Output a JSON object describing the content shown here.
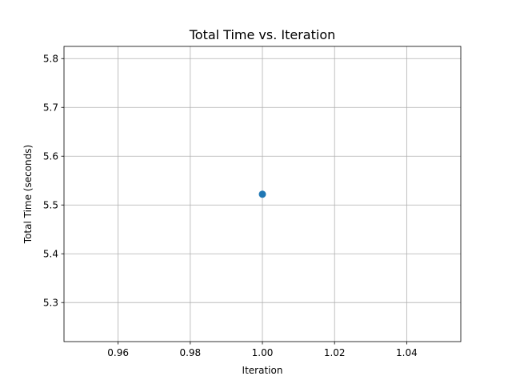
{
  "chart_data": {
    "type": "scatter",
    "title": "Total Time vs. Iteration",
    "xlabel": "Iteration",
    "ylabel": "Total Time (seconds)",
    "xlim": [
      0.945,
      1.055
    ],
    "ylim": [
      5.22,
      5.825
    ],
    "x_ticks": [
      0.96,
      0.98,
      1.0,
      1.02,
      1.04
    ],
    "x_tick_labels": [
      "0.96",
      "0.98",
      "1.00",
      "1.02",
      "1.04"
    ],
    "y_ticks": [
      5.3,
      5.4,
      5.5,
      5.6,
      5.7,
      5.8
    ],
    "y_tick_labels": [
      "5.3",
      "5.4",
      "5.5",
      "5.6",
      "5.7",
      "5.8"
    ],
    "grid": true,
    "series": [
      {
        "x": [
          1.0
        ],
        "y": [
          5.522
        ],
        "color": "#1f77b4",
        "marker": "circle"
      }
    ]
  }
}
